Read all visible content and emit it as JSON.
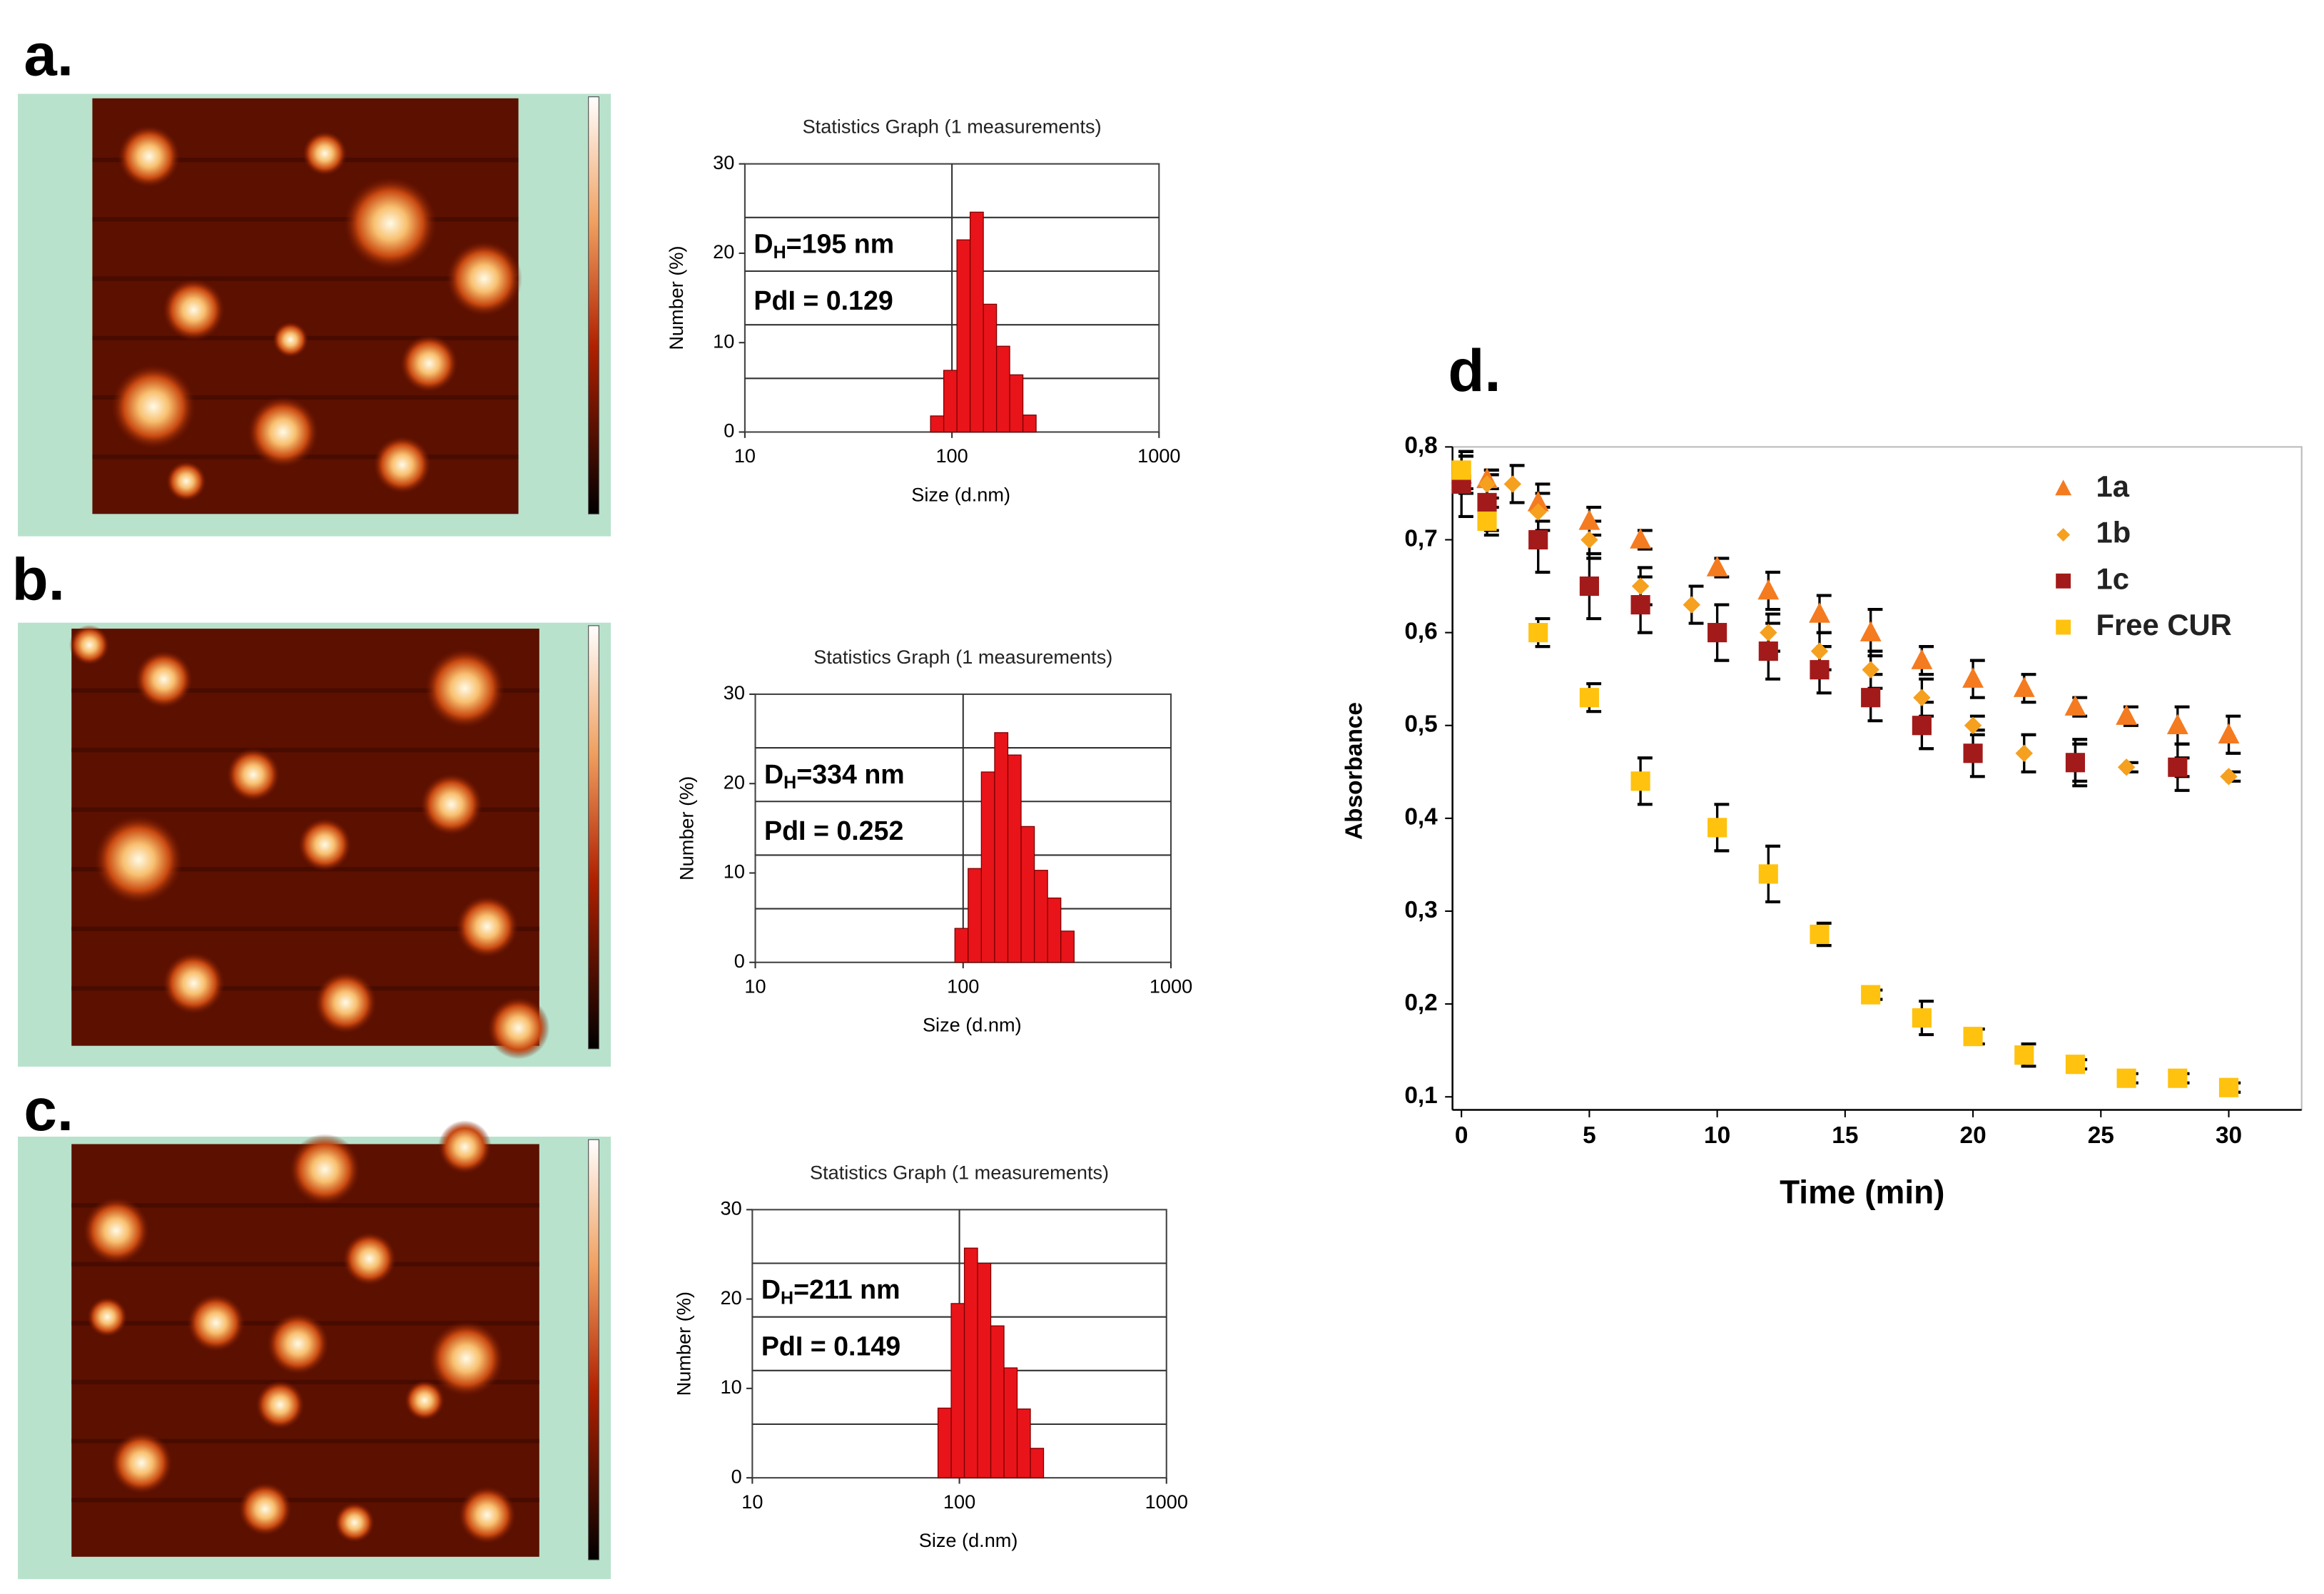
{
  "panel_labels": [
    "a.",
    "b.",
    "c.",
    "d."
  ],
  "chart_data": [
    {
      "type": "histogram",
      "title": "Statistics Graph (1 measurements)",
      "x_label": "Size (d.nm)",
      "y_label": "Number (%)",
      "annotations": [
        {
          "symbol": "D",
          "subscript": "H",
          "text": "=195 nm"
        },
        {
          "text": "PdI = 0.129"
        }
      ],
      "bins": [
        78.82,
        91.28,
        105.7,
        122.4,
        141.8,
        164.2,
        190.1,
        220.2,
        255.0
      ],
      "counts": [
        1.8,
        6.9,
        21.5,
        24.6,
        14.3,
        9.6,
        6.4,
        1.9
      ],
      "color": "#e8141a",
      "edge_color": "#7a0000",
      "log_x": true,
      "xlim": [
        10,
        1000
      ],
      "xticks": [
        10,
        100,
        1000
      ],
      "ylim": [
        0,
        30
      ],
      "yticks": [
        0,
        10,
        20,
        30
      ],
      "y_grid": [
        6,
        12,
        18,
        24
      ],
      "x_grid": [
        100
      ]
    },
    {
      "type": "histogram",
      "title": "Statistics Graph (1 measurements)",
      "x_label": "Size (d.nm)",
      "y_label": "Number (%)",
      "annotations": [
        {
          "symbol": "D",
          "subscript": "H",
          "text": "=334 nm"
        },
        {
          "text": "PdI = 0.252"
        }
      ],
      "bins": [
        91.28,
        105.7,
        122.4,
        141.8,
        164.2,
        190.1,
        220.2,
        255.0,
        295.3,
        342.0
      ],
      "counts": [
        3.8,
        10.5,
        21.3,
        25.7,
        23.2,
        15.2,
        10.3,
        7.2,
        3.5
      ],
      "color": "#e8141a",
      "edge_color": "#7a0000",
      "log_x": true,
      "xlim": [
        10,
        1000
      ],
      "xticks": [
        10,
        100,
        1000
      ],
      "ylim": [
        0,
        30
      ],
      "yticks": [
        0,
        10,
        20,
        30
      ],
      "y_grid": [
        6,
        12,
        18,
        24
      ],
      "x_grid": [
        100
      ]
    },
    {
      "type": "histogram",
      "title": "Statistics Graph (1 measurements)",
      "x_label": "Size (d.nm)",
      "y_label": "Number (%)",
      "annotations": [
        {
          "symbol": "D",
          "subscript": "H",
          "text": "=211 nm"
        },
        {
          "text": "PdI = 0.149"
        }
      ],
      "bins": [
        78.82,
        91.28,
        105.7,
        122.4,
        141.8,
        164.2,
        190.1,
        220.2,
        255.0
      ],
      "counts": [
        7.8,
        19.5,
        25.7,
        24.0,
        17.0,
        12.3,
        7.7,
        3.3
      ],
      "color": "#e8141a",
      "edge_color": "#7a0000",
      "log_x": true,
      "xlim": [
        10,
        1000
      ],
      "xticks": [
        10,
        100,
        1000
      ],
      "ylim": [
        0,
        30
      ],
      "yticks": [
        0,
        10,
        20,
        30
      ],
      "y_grid": [
        6,
        12,
        18,
        24
      ],
      "x_grid": [
        100
      ]
    },
    {
      "type": "scatter",
      "x_label": "Time (min)",
      "y_label": "Absorbance",
      "legend": "upper right",
      "xlim": [
        -0.35,
        32.85
      ],
      "xticks": [
        0,
        5,
        10,
        15,
        20,
        25,
        30
      ],
      "ylim": [
        0.086,
        0.8
      ],
      "yticks": [
        {
          "value": 0.1,
          "label": "0,1"
        },
        {
          "value": 0.2,
          "label": "0,2"
        },
        {
          "value": 0.3,
          "label": "0,3"
        },
        {
          "value": 0.4,
          "label": "0,4"
        },
        {
          "value": 0.5,
          "label": "0,5"
        },
        {
          "value": 0.6,
          "label": "0,6"
        },
        {
          "value": 0.7,
          "label": "0,7"
        },
        {
          "value": 0.8,
          "label": "0,8"
        }
      ],
      "series": [
        {
          "name": "1a",
          "color": "#f47b20",
          "marker": "triangle",
          "x": [
            0,
            1,
            3,
            5,
            7,
            10,
            12,
            14,
            16,
            18,
            20,
            22,
            24,
            26,
            28,
            30
          ],
          "values": [
            0.77,
            0.765,
            0.74,
            0.72,
            0.7,
            0.67,
            0.645,
            0.62,
            0.6,
            0.57,
            0.55,
            0.54,
            0.52,
            0.51,
            0.5,
            0.49
          ],
          "errors": [
            0.02,
            0.01,
            0.02,
            0.015,
            0.01,
            0.01,
            0.02,
            0.02,
            0.025,
            0.015,
            0.02,
            0.015,
            0.01,
            0.01,
            0.02,
            0.02
          ]
        },
        {
          "name": "1b",
          "color": "#f5a01e",
          "marker": "diamond",
          "x": [
            0,
            1,
            2,
            3,
            5,
            7,
            9,
            12,
            14,
            16,
            18,
            20,
            22,
            24,
            26,
            28,
            30
          ],
          "values": [
            0.77,
            0.76,
            0.76,
            0.73,
            0.7,
            0.65,
            0.63,
            0.6,
            0.58,
            0.56,
            0.53,
            0.5,
            0.47,
            0.46,
            0.455,
            0.455,
            0.445
          ],
          "errors": [
            0.02,
            0.015,
            0.02,
            0.02,
            0.02,
            0.02,
            0.02,
            0.02,
            0.02,
            0.02,
            0.02,
            0.01,
            0.02,
            0.02,
            0.005,
            0.01,
            0.005
          ]
        },
        {
          "name": "1c",
          "color": "#a31a1a",
          "marker": "square",
          "x": [
            0,
            1,
            3,
            5,
            7,
            10,
            12,
            14,
            16,
            18,
            20,
            24,
            28
          ],
          "values": [
            0.76,
            0.74,
            0.7,
            0.65,
            0.63,
            0.6,
            0.58,
            0.56,
            0.53,
            0.5,
            0.47,
            0.46,
            0.455
          ],
          "errors": [
            0.035,
            0.03,
            0.035,
            0.035,
            0.03,
            0.03,
            0.03,
            0.025,
            0.025,
            0.025,
            0.025,
            0.025,
            0.025
          ]
        },
        {
          "name": "Free CUR",
          "color": "#ffc20e",
          "marker": "square",
          "x": [
            0,
            1,
            3,
            5,
            7,
            10,
            12,
            14,
            16,
            18,
            20,
            22,
            24,
            26,
            28,
            30
          ],
          "values": [
            0.775,
            0.72,
            0.6,
            0.53,
            0.44,
            0.39,
            0.34,
            0.275,
            0.21,
            0.185,
            0.165,
            0.145,
            0.135,
            0.12,
            0.12,
            0.11
          ],
          "errors": [
            0.02,
            0.015,
            0.015,
            0.015,
            0.025,
            0.025,
            0.03,
            0.012,
            0.005,
            0.018,
            0.008,
            0.012,
            0.005,
            0.005,
            0.005,
            0.005
          ]
        }
      ]
    }
  ]
}
